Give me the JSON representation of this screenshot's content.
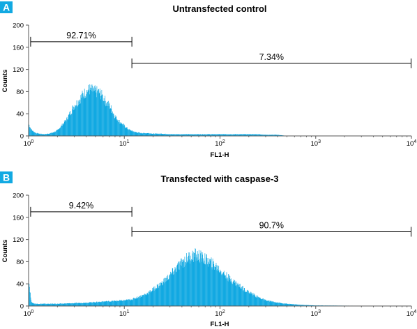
{
  "colors": {
    "histogram_fill": "#12A9E2",
    "panel_badge": "#12A9E2",
    "axis": "#555555",
    "gate_line": "#000000"
  },
  "chart_data": [
    {
      "type": "area",
      "panel_label": "A",
      "title": "Untransfected control",
      "xlabel": "FL1-H",
      "ylabel": "Counts",
      "x_scale": "log",
      "xlim": [
        1,
        10000
      ],
      "ylim": [
        0,
        200
      ],
      "x_ticks": [
        "10^0",
        "10^1",
        "10^2",
        "10^3",
        "10^4"
      ],
      "y_ticks": [
        0,
        40,
        80,
        120,
        160,
        200
      ],
      "grid": false,
      "gates": [
        {
          "label": "92.71%",
          "x_start": 1.05,
          "x_end": 12,
          "y": 170
        },
        {
          "label": "7.34%",
          "x_start": 12,
          "x_end": 10000,
          "y": 131
        }
      ],
      "series": [
        {
          "x": [
            1,
            1.06,
            1.12,
            1.2,
            1.3,
            1.45,
            1.6,
            1.8,
            2.0,
            2.2,
            2.5,
            2.8,
            3.0,
            3.3,
            3.6,
            4.0,
            4.3,
            4.6,
            5.0,
            5.5,
            6.0,
            6.5,
            7.0,
            7.5,
            8.0,
            9.0,
            10,
            11,
            12,
            13,
            15,
            18,
            20,
            25,
            30,
            40,
            50,
            60,
            80,
            100,
            120,
            150,
            180,
            200,
            250,
            300,
            350,
            400,
            450,
            500,
            1000,
            10000
          ],
          "y": [
            22,
            12,
            8,
            5,
            4,
            3,
            4,
            6,
            10,
            18,
            30,
            45,
            55,
            62,
            72,
            80,
            84,
            82,
            80,
            78,
            70,
            60,
            55,
            45,
            35,
            25,
            18,
            12,
            9,
            7,
            5,
            5,
            4,
            4,
            3,
            3,
            3,
            3,
            3,
            3,
            3,
            3,
            3,
            3,
            3,
            2,
            2,
            2,
            1,
            0,
            0,
            0
          ]
        }
      ]
    },
    {
      "type": "area",
      "panel_label": "B",
      "title": "Transfected with caspase-3",
      "xlabel": "FL1-H",
      "ylabel": "Counts",
      "x_scale": "log",
      "xlim": [
        1,
        10000
      ],
      "ylim": [
        0,
        200
      ],
      "x_ticks": [
        "10^0",
        "10^1",
        "10^2",
        "10^3",
        "10^4"
      ],
      "y_ticks": [
        0,
        40,
        80,
        120,
        160,
        200
      ],
      "grid": false,
      "gates": [
        {
          "label": "9.42%",
          "x_start": 1.05,
          "x_end": 12,
          "y": 170
        },
        {
          "label": "90.7%",
          "x_start": 12,
          "x_end": 10000,
          "y": 134
        }
      ],
      "series": [
        {
          "x": [
            1,
            1.03,
            1.06,
            1.1,
            1.2,
            1.5,
            2,
            3,
            4,
            5,
            6,
            8,
            10,
            12,
            15,
            18,
            20,
            25,
            30,
            35,
            40,
            45,
            50,
            55,
            60,
            70,
            80,
            90,
            100,
            120,
            150,
            180,
            200,
            250,
            300,
            400,
            500,
            700,
            1000,
            10000
          ],
          "y": [
            50,
            30,
            10,
            5,
            4,
            4,
            4,
            5,
            6,
            7,
            8,
            9,
            10,
            12,
            18,
            24,
            30,
            42,
            55,
            68,
            78,
            85,
            90,
            92,
            90,
            84,
            78,
            72,
            65,
            52,
            40,
            30,
            25,
            16,
            10,
            6,
            4,
            2,
            1,
            0
          ]
        }
      ]
    }
  ]
}
